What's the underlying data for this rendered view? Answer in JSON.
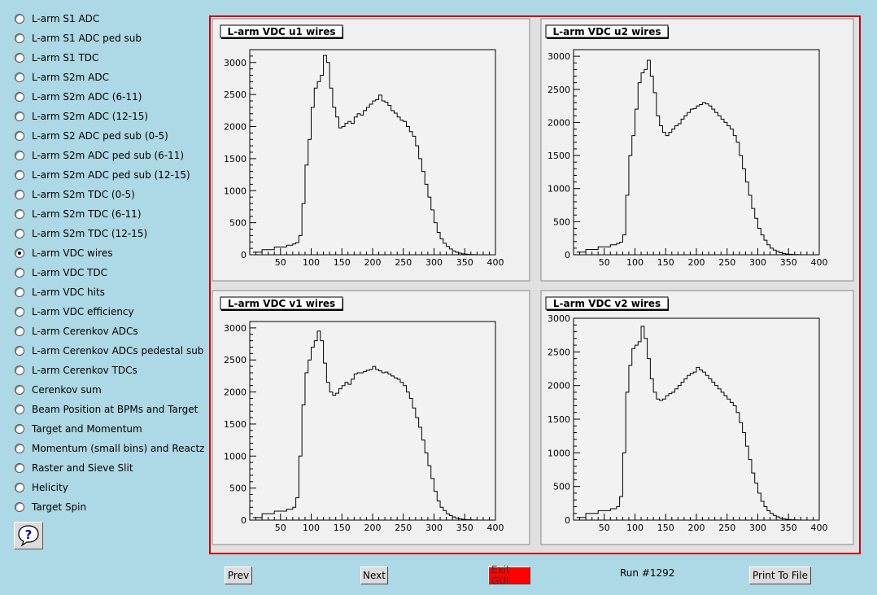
{
  "sidebar": {
    "items": [
      {
        "label": "L-arm S1 ADC",
        "checked": false
      },
      {
        "label": "L-arm S1 ADC ped sub",
        "checked": false
      },
      {
        "label": "L-arm S1 TDC",
        "checked": false
      },
      {
        "label": "L-arm S2m ADC",
        "checked": false
      },
      {
        "label": "L-arm S2m ADC (6-11)",
        "checked": false
      },
      {
        "label": "L-arm S2m ADC (12-15)",
        "checked": false
      },
      {
        "label": "L-arm S2 ADC ped sub (0-5)",
        "checked": false
      },
      {
        "label": "L-arm S2m ADC ped sub (6-11)",
        "checked": false
      },
      {
        "label": "L-arm S2m ADC ped sub (12-15)",
        "checked": false
      },
      {
        "label": "L-arm S2m TDC (0-5)",
        "checked": false
      },
      {
        "label": "L-arm S2m TDC (6-11)",
        "checked": false
      },
      {
        "label": "L-arm S2m TDC (12-15)",
        "checked": false
      },
      {
        "label": "L-arm VDC wires",
        "checked": true
      },
      {
        "label": "L-arm VDC TDC",
        "checked": false
      },
      {
        "label": "L-arm VDC hits",
        "checked": false
      },
      {
        "label": "L-arm VDC efficiency",
        "checked": false
      },
      {
        "label": "L-arm Cerenkov ADCs",
        "checked": false
      },
      {
        "label": "L-arm Cerenkov ADCs pedestal sub",
        "checked": false
      },
      {
        "label": "L-arm Cerenkov TDCs",
        "checked": false
      },
      {
        "label": "Cerenkov sum",
        "checked": false
      },
      {
        "label": "Beam Position at BPMs and Target",
        "checked": false
      },
      {
        "label": "Target and Momentum",
        "checked": false
      },
      {
        "label": "Momentum (small bins) and Reactz",
        "checked": false
      },
      {
        "label": "Raster and Sieve Slit",
        "checked": false
      },
      {
        "label": "Helicity",
        "checked": false
      },
      {
        "label": "Target Spin",
        "checked": false
      }
    ],
    "help_icon": "question-mark-icon"
  },
  "buttons": {
    "prev": "Prev",
    "next": "Next",
    "exit": "Exit GUI",
    "print": "Print To File"
  },
  "run_label": "Run #1292",
  "colors": {
    "background": "#add8e6",
    "frame_border": "#cc0000",
    "exit_button": "#ff0000"
  },
  "chart_data": [
    {
      "type": "line",
      "title": "L-arm VDC u1 wires",
      "xlim": [
        0,
        400
      ],
      "ylim": [
        0,
        3200
      ],
      "xticks": [
        50,
        100,
        150,
        200,
        250,
        300,
        350,
        400
      ],
      "yticks": [
        0,
        500,
        1000,
        1500,
        2000,
        2500,
        3000
      ],
      "x": [
        5,
        20,
        40,
        60,
        70,
        75,
        80,
        85,
        90,
        95,
        100,
        105,
        110,
        115,
        120,
        125,
        130,
        135,
        140,
        145,
        150,
        155,
        160,
        165,
        170,
        175,
        180,
        185,
        190,
        195,
        200,
        205,
        210,
        215,
        220,
        225,
        230,
        235,
        240,
        245,
        250,
        255,
        260,
        265,
        270,
        275,
        280,
        285,
        290,
        295,
        300,
        305,
        310,
        315,
        320,
        325,
        330,
        335,
        340,
        345,
        350,
        355,
        360,
        365,
        370
      ],
      "y": [
        40,
        80,
        120,
        150,
        170,
        190,
        300,
        800,
        1400,
        1800,
        2300,
        2600,
        2700,
        2800,
        3110,
        3000,
        2600,
        2300,
        2150,
        1980,
        2000,
        2050,
        2080,
        2050,
        2150,
        2200,
        2180,
        2250,
        2300,
        2350,
        2400,
        2420,
        2490,
        2400,
        2380,
        2330,
        2250,
        2210,
        2150,
        2100,
        2080,
        2000,
        1920,
        1850,
        1700,
        1500,
        1300,
        1100,
        900,
        700,
        500,
        350,
        250,
        180,
        130,
        90,
        60,
        40,
        25,
        15,
        10,
        5,
        3,
        2,
        1
      ]
    },
    {
      "type": "line",
      "title": "L-arm VDC u2 wires",
      "xlim": [
        0,
        400
      ],
      "ylim": [
        0,
        3100
      ],
      "xticks": [
        50,
        100,
        150,
        200,
        250,
        300,
        350,
        400
      ],
      "yticks": [
        0,
        500,
        1000,
        1500,
        2000,
        2500,
        3000
      ],
      "x": [
        5,
        20,
        40,
        60,
        70,
        75,
        80,
        85,
        90,
        95,
        100,
        105,
        110,
        115,
        120,
        125,
        130,
        135,
        140,
        145,
        150,
        155,
        160,
        165,
        170,
        175,
        180,
        185,
        190,
        195,
        200,
        205,
        210,
        215,
        220,
        225,
        230,
        235,
        240,
        245,
        250,
        255,
        260,
        265,
        270,
        275,
        280,
        285,
        290,
        295,
        300,
        305,
        310,
        315,
        320,
        325,
        330,
        335,
        340,
        345,
        350,
        355,
        360,
        365,
        370
      ],
      "y": [
        40,
        80,
        120,
        150,
        170,
        190,
        300,
        900,
        1500,
        1800,
        2200,
        2600,
        2750,
        2800,
        2940,
        2700,
        2450,
        2100,
        1950,
        1850,
        1800,
        1850,
        1900,
        1950,
        1980,
        2050,
        2100,
        2150,
        2200,
        2210,
        2250,
        2270,
        2300,
        2280,
        2250,
        2200,
        2150,
        2100,
        2050,
        2000,
        1950,
        1900,
        1800,
        1700,
        1500,
        1300,
        1100,
        900,
        700,
        550,
        400,
        300,
        220,
        150,
        100,
        70,
        50,
        30,
        20,
        12,
        8,
        5,
        3,
        2,
        1
      ]
    },
    {
      "type": "line",
      "title": "L-arm VDC v1 wires",
      "xlim": [
        0,
        400
      ],
      "ylim": [
        0,
        3100
      ],
      "xticks": [
        50,
        100,
        150,
        200,
        250,
        300,
        350,
        400
      ],
      "yticks": [
        0,
        500,
        1000,
        1500,
        2000,
        2500,
        3000
      ],
      "x": [
        5,
        20,
        40,
        60,
        70,
        75,
        80,
        85,
        90,
        95,
        100,
        105,
        110,
        115,
        120,
        125,
        130,
        135,
        140,
        145,
        150,
        155,
        160,
        165,
        170,
        175,
        180,
        185,
        190,
        195,
        200,
        205,
        210,
        215,
        220,
        225,
        230,
        235,
        240,
        245,
        250,
        255,
        260,
        265,
        270,
        275,
        280,
        285,
        290,
        295,
        300,
        305,
        310,
        315,
        320,
        325,
        330,
        335,
        340,
        345,
        350,
        355,
        360,
        365,
        370
      ],
      "y": [
        40,
        100,
        140,
        170,
        200,
        350,
        1000,
        1800,
        2300,
        2500,
        2700,
        2800,
        2950,
        2800,
        2450,
        2150,
        2000,
        1950,
        1980,
        2050,
        2100,
        2150,
        2120,
        2200,
        2280,
        2300,
        2300,
        2320,
        2340,
        2350,
        2400,
        2350,
        2330,
        2300,
        2310,
        2280,
        2250,
        2220,
        2200,
        2150,
        2100,
        2000,
        1900,
        1750,
        1600,
        1450,
        1250,
        1050,
        850,
        650,
        450,
        300,
        200,
        150,
        100,
        70,
        50,
        30,
        20,
        12,
        8,
        5,
        3,
        2,
        1
      ]
    },
    {
      "type": "line",
      "title": "L-arm VDC v2 wires",
      "xlim": [
        0,
        400
      ],
      "ylim": [
        0,
        3000
      ],
      "xticks": [
        50,
        100,
        150,
        200,
        250,
        300,
        350,
        400
      ],
      "yticks": [
        0,
        500,
        1000,
        1500,
        2000,
        2500,
        3000
      ],
      "x": [
        5,
        20,
        40,
        60,
        70,
        75,
        80,
        85,
        90,
        95,
        100,
        105,
        110,
        115,
        120,
        125,
        130,
        135,
        140,
        145,
        150,
        155,
        160,
        165,
        170,
        175,
        180,
        185,
        190,
        195,
        200,
        205,
        210,
        215,
        220,
        225,
        230,
        235,
        240,
        245,
        250,
        255,
        260,
        265,
        270,
        275,
        280,
        285,
        290,
        295,
        300,
        305,
        310,
        315,
        320,
        325,
        330,
        335,
        340,
        345,
        350,
        355,
        360,
        365,
        370
      ],
      "y": [
        40,
        100,
        140,
        170,
        200,
        350,
        1000,
        1900,
        2300,
        2550,
        2600,
        2650,
        2880,
        2700,
        2400,
        2100,
        1900,
        1800,
        1780,
        1800,
        1850,
        1880,
        1900,
        1950,
        2000,
        2050,
        2100,
        2150,
        2180,
        2200,
        2270,
        2230,
        2200,
        2150,
        2100,
        2050,
        2000,
        1950,
        1900,
        1850,
        1800,
        1750,
        1700,
        1600,
        1450,
        1300,
        1100,
        900,
        700,
        550,
        400,
        280,
        200,
        140,
        100,
        70,
        50,
        30,
        20,
        12,
        8,
        5,
        3,
        2,
        1
      ]
    }
  ]
}
